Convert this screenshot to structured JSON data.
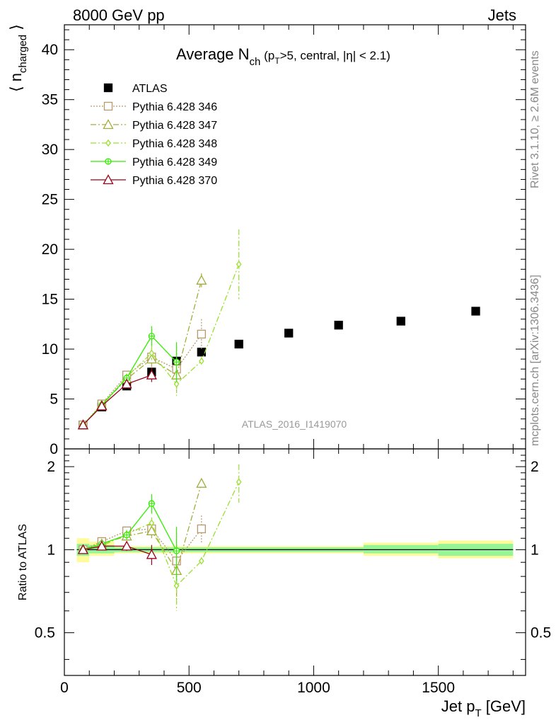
{
  "header": {
    "left_label": "8000 GeV pp",
    "right_label": "Jets"
  },
  "side_labels": {
    "rivet": "Rivet 3.1.10, ≥ 2.6M events",
    "mcplots": "mcplots.cern.ch [arXiv:1306.3436]"
  },
  "chart_data": [
    {
      "panel": "main",
      "type": "scatter",
      "title_main": "Average N",
      "title_sub": "ch",
      "title_suffix": " (p",
      "title_suffix_sub": "T",
      "title_suffix_rest": ">5, central, |η| < 2.1)",
      "ylabel": "⟨ n",
      "ylabel_sub": "charged",
      "ylabel_end": " ⟩",
      "watermark": "ATLAS_2016_I1419070",
      "xlim": [
        0,
        1850
      ],
      "ylim": [
        0,
        42.5
      ],
      "y_ticks": [
        0,
        5,
        10,
        15,
        20,
        25,
        30,
        35,
        40
      ],
      "y_tick_labels": [
        "0",
        "5",
        "10",
        "15",
        "20",
        "25",
        "30",
        "35",
        "40"
      ],
      "legend_position": "top-left",
      "series": [
        {
          "name": "ATLAS",
          "color": "#000000",
          "marker": "square-filled",
          "line": "none",
          "x": [
            75,
            150,
            250,
            350,
            450,
            550,
            700,
            900,
            1100,
            1350,
            1650
          ],
          "y": [
            2.4,
            4.2,
            6.3,
            7.7,
            8.8,
            9.7,
            10.5,
            11.6,
            12.4,
            12.8,
            13.8
          ],
          "yerr": [
            0,
            0,
            0,
            0,
            0,
            0,
            0,
            0,
            0,
            0,
            0
          ]
        },
        {
          "name": "Pythia 6.428 346",
          "color": "#B8996A",
          "marker": "square-open",
          "line": "dotted",
          "x": [
            75,
            150,
            250,
            350,
            450,
            550
          ],
          "y": [
            2.4,
            4.5,
            7.4,
            9.2,
            8.0,
            11.5
          ],
          "yerr": [
            0.2,
            0.2,
            0.3,
            0.7,
            2.2,
            1.5
          ]
        },
        {
          "name": "Pythia 6.428 347",
          "color": "#A4AC3C",
          "marker": "triangle-open",
          "line": "dashdot",
          "x": [
            75,
            150,
            250,
            350,
            450,
            550
          ],
          "y": [
            2.4,
            4.4,
            7.0,
            9.0,
            7.4,
            16.9
          ],
          "yerr": [
            0.2,
            0.2,
            0.3,
            0.8,
            1.8,
            0.7
          ]
        },
        {
          "name": "Pythia 6.428 348",
          "color": "#99E02F",
          "marker": "diamond-open",
          "line": "dashdot",
          "x": [
            75,
            150,
            250,
            350,
            450,
            550,
            700
          ],
          "y": [
            2.4,
            4.3,
            7.2,
            9.6,
            6.5,
            8.8,
            18.5
          ],
          "yerr": [
            0.2,
            0.2,
            0.3,
            0.7,
            1.2,
            0.4,
            3.5
          ]
        },
        {
          "name": "Pythia 6.428 349",
          "color": "#33EE00",
          "marker": "circle-cross",
          "line": "solid",
          "x": [
            75,
            150,
            250,
            350,
            450
          ],
          "y": [
            2.4,
            4.4,
            7.1,
            11.3,
            8.7
          ],
          "yerr": [
            0.2,
            0.2,
            0.3,
            1.0,
            2.0
          ]
        },
        {
          "name": "Pythia 6.428 370",
          "color": "#99001A",
          "marker": "triangle-open",
          "line": "solid",
          "x": [
            75,
            150,
            250,
            350
          ],
          "y": [
            2.4,
            4.3,
            6.5,
            7.4
          ],
          "yerr": [
            0.2,
            0.2,
            0.3,
            0.7
          ]
        }
      ]
    },
    {
      "panel": "ratio",
      "type": "scatter",
      "ylabel": "Ratio to ATLAS",
      "xlabel": "Jet p",
      "xlabel_sub": "T",
      "xlabel_unit": " [GeV]",
      "xlim": [
        0,
        1850
      ],
      "ylim": [
        0.35,
        2.32
      ],
      "x_ticks": [
        0,
        500,
        1000,
        1500
      ],
      "x_tick_labels": [
        "0",
        "500",
        "1000",
        "1500"
      ],
      "y_ticks": [
        0.5,
        1,
        2
      ],
      "y_tick_labels": [
        "0.5",
        "1",
        "2"
      ],
      "band": [
        {
          "x0": 50,
          "x1": 100,
          "inner": [
            0.95,
            1.05
          ],
          "outer": [
            0.9,
            1.1
          ]
        },
        {
          "x0": 100,
          "x1": 200,
          "inner": [
            0.97,
            1.04
          ],
          "outer": [
            0.95,
            1.07
          ]
        },
        {
          "x0": 200,
          "x1": 1200,
          "inner": [
            0.98,
            1.02
          ],
          "outer": [
            0.97,
            1.03
          ]
        },
        {
          "x0": 1200,
          "x1": 1500,
          "inner": [
            0.97,
            1.04
          ],
          "outer": [
            0.95,
            1.06
          ]
        },
        {
          "x0": 1500,
          "x1": 1800,
          "inner": [
            0.95,
            1.05
          ],
          "outer": [
            0.93,
            1.08
          ]
        }
      ],
      "series": [
        {
          "name": "Pythia 6.428 346",
          "x": [
            75,
            150,
            250,
            350,
            450,
            550
          ],
          "y": [
            1.0,
            1.07,
            1.17,
            1.19,
            0.91,
            1.19
          ],
          "yerr": [
            0.02,
            0.03,
            0.04,
            0.06,
            0.24,
            0.14
          ]
        },
        {
          "name": "Pythia 6.428 347",
          "x": [
            75,
            150,
            250,
            350,
            450,
            550
          ],
          "y": [
            1.0,
            1.05,
            1.12,
            1.17,
            0.84,
            1.74
          ],
          "yerr": [
            0.02,
            0.03,
            0.04,
            0.07,
            0.2,
            0.05
          ]
        },
        {
          "name": "Pythia 6.428 348",
          "x": [
            75,
            150,
            250,
            350,
            450,
            550,
            700
          ],
          "y": [
            1.0,
            1.03,
            1.14,
            1.25,
            0.74,
            0.91,
            1.76
          ],
          "yerr": [
            0.02,
            0.03,
            0.04,
            0.06,
            0.14,
            0.03,
            0.28
          ]
        },
        {
          "name": "Pythia 6.428 349",
          "x": [
            75,
            150,
            250,
            350,
            450
          ],
          "y": [
            1.0,
            1.05,
            1.13,
            1.47,
            0.99
          ],
          "yerr": [
            0.02,
            0.03,
            0.04,
            0.12,
            0.22
          ]
        },
        {
          "name": "Pythia 6.428 370",
          "x": [
            75,
            150,
            250,
            350
          ],
          "y": [
            1.0,
            1.03,
            1.03,
            0.96
          ],
          "yerr": [
            0.02,
            0.03,
            0.04,
            0.08
          ]
        }
      ]
    }
  ]
}
